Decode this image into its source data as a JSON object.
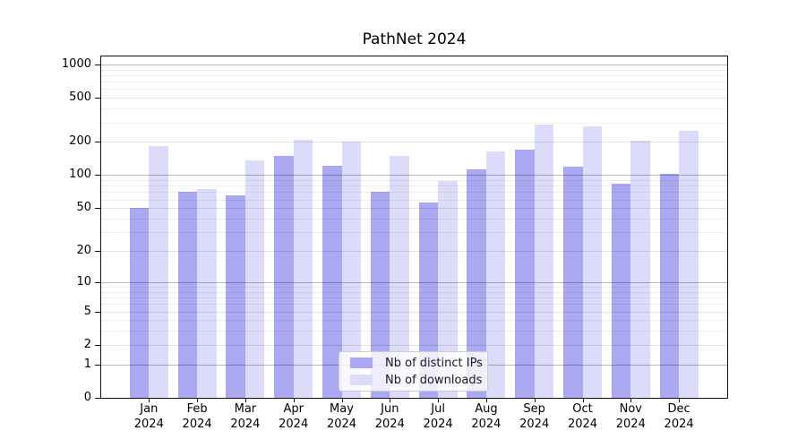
{
  "chart_data": {
    "type": "bar",
    "title": "PathNet 2024",
    "categories": [
      "Jan",
      "Feb",
      "Mar",
      "Apr",
      "May",
      "Jun",
      "Jul",
      "Aug",
      "Sep",
      "Oct",
      "Nov",
      "Dec"
    ],
    "category_year": "2024",
    "series": [
      {
        "name": "Nb of distinct IPs",
        "color": "#a9a8f1",
        "values": [
          50,
          70,
          65,
          150,
          122,
          70,
          56,
          113,
          170,
          120,
          84,
          102
        ]
      },
      {
        "name": "Nb of downloads",
        "color": "#dcdcfa",
        "values": [
          185,
          75,
          137,
          210,
          200,
          150,
          88,
          165,
          290,
          275,
          205,
          250
        ]
      }
    ],
    "y_scale": "log10(1+x)",
    "y_ticks": [
      0,
      1,
      2,
      5,
      10,
      20,
      50,
      100,
      200,
      500,
      1000
    ],
    "y_tick_labels": [
      "0",
      "1",
      "2",
      "5",
      "10",
      "20",
      "50",
      "100",
      "200",
      "500",
      "1000"
    ],
    "ylim": [
      0,
      1200
    ],
    "grid": "horizontal major and minor, drawn above bars",
    "legend_position": "lower center inside plot"
  }
}
